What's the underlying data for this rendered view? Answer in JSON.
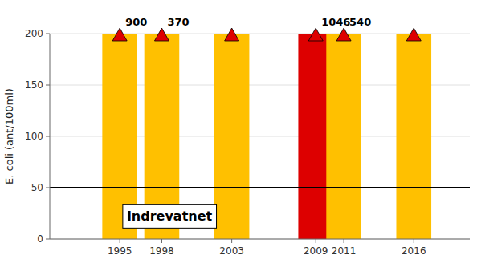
{
  "chart_data": {
    "type": "bar",
    "x": [
      1995,
      1998,
      2003,
      2009,
      2011,
      2016
    ],
    "values": [
      200,
      200,
      200,
      200,
      200,
      200
    ],
    "colors": [
      "#FFC000",
      "#FFC000",
      "#FFC000",
      "#DD0000",
      "#FFC000",
      "#FFC000"
    ],
    "xlim": [
      1990,
      2020
    ],
    "xticks": [
      1995,
      1998,
      2003,
      2009,
      2011,
      2016
    ],
    "ylim": [
      0,
      200
    ],
    "yticks": [
      0,
      50,
      100,
      150,
      200
    ],
    "ylabel": "E. coli (ant/100ml)",
    "grid": true,
    "annotations": [
      {
        "type": "hline",
        "y": 50,
        "color": "#000000"
      },
      {
        "type": "text",
        "text": "Indrevatnet",
        "x": 1995.5,
        "y": 22
      },
      {
        "type": "marker",
        "marker": "triangle",
        "color": "#DD0000",
        "x": 1995,
        "text": "900"
      },
      {
        "type": "marker",
        "marker": "triangle",
        "color": "#DD0000",
        "x": 1998,
        "text": "370"
      },
      {
        "type": "marker",
        "marker": "triangle",
        "color": "#DD0000",
        "x": 2003
      },
      {
        "type": "marker",
        "marker": "triangle",
        "color": "#DD0000",
        "x": 2009,
        "text": "1046"
      },
      {
        "type": "marker",
        "marker": "triangle",
        "color": "#DD0000",
        "x": 2011,
        "text": "540"
      },
      {
        "type": "marker",
        "marker": "triangle",
        "color": "#DD0000",
        "x": 2016
      }
    ]
  }
}
